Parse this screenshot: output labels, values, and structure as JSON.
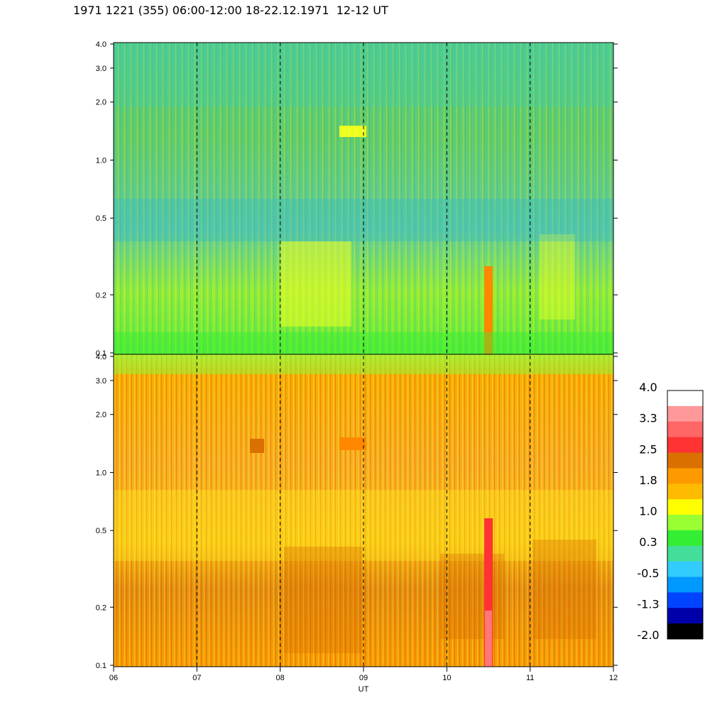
{
  "title": "1971 1221 (355) 06:00-12:00 18-22.12.1971  12-12 UT",
  "chart_data": [
    {
      "type": "heatmap",
      "panel": "top",
      "x_range": [
        6,
        12
      ],
      "y_scale": "log",
      "y_range": [
        0.1,
        4.0
      ],
      "y_ticks": [
        "0.1",
        "0.2",
        "0.5",
        "1.0",
        "2.0",
        "3.0",
        "4.0"
      ],
      "y_tick_values": [
        0.1,
        0.2,
        0.5,
        1.0,
        2.0,
        3.0,
        4.0
      ],
      "dominant_level": 0.5
    },
    {
      "type": "heatmap",
      "panel": "bottom",
      "x_range": [
        6,
        12
      ],
      "y_scale": "log",
      "y_range": [
        0.1,
        4.0
      ],
      "y_ticks": [
        "0.1",
        "0.2",
        "0.5",
        "1.0",
        "2.0",
        "3.0",
        "4.0"
      ],
      "y_tick_values": [
        0.1,
        0.2,
        0.5,
        1.0,
        2.0,
        3.0,
        4.0
      ],
      "x_ticks": [
        "06",
        "07",
        "08",
        "09",
        "10",
        "11",
        "12"
      ],
      "x_tick_values": [
        6,
        7,
        8,
        9,
        10,
        11,
        12
      ],
      "xlabel": "UT",
      "dominant_level": 1.8
    }
  ],
  "colorbar": {
    "labels": [
      "4.0",
      "3.3",
      "2.5",
      "1.8",
      "1.0",
      "0.3",
      "-0.5",
      "-1.3",
      "-2.0"
    ],
    "colors_top_to_bottom": [
      "#ffffff",
      "#ff9999",
      "#ff6666",
      "#ff3333",
      "#d97000",
      "#ff9900",
      "#ffbb00",
      "#ffff00",
      "#99ff33",
      "#33ee33",
      "#44dd99",
      "#33ccff",
      "#0099ff",
      "#0044ff",
      "#0000aa",
      "#000000"
    ]
  },
  "gridlines_x": [
    7,
    8,
    9,
    10,
    11
  ]
}
